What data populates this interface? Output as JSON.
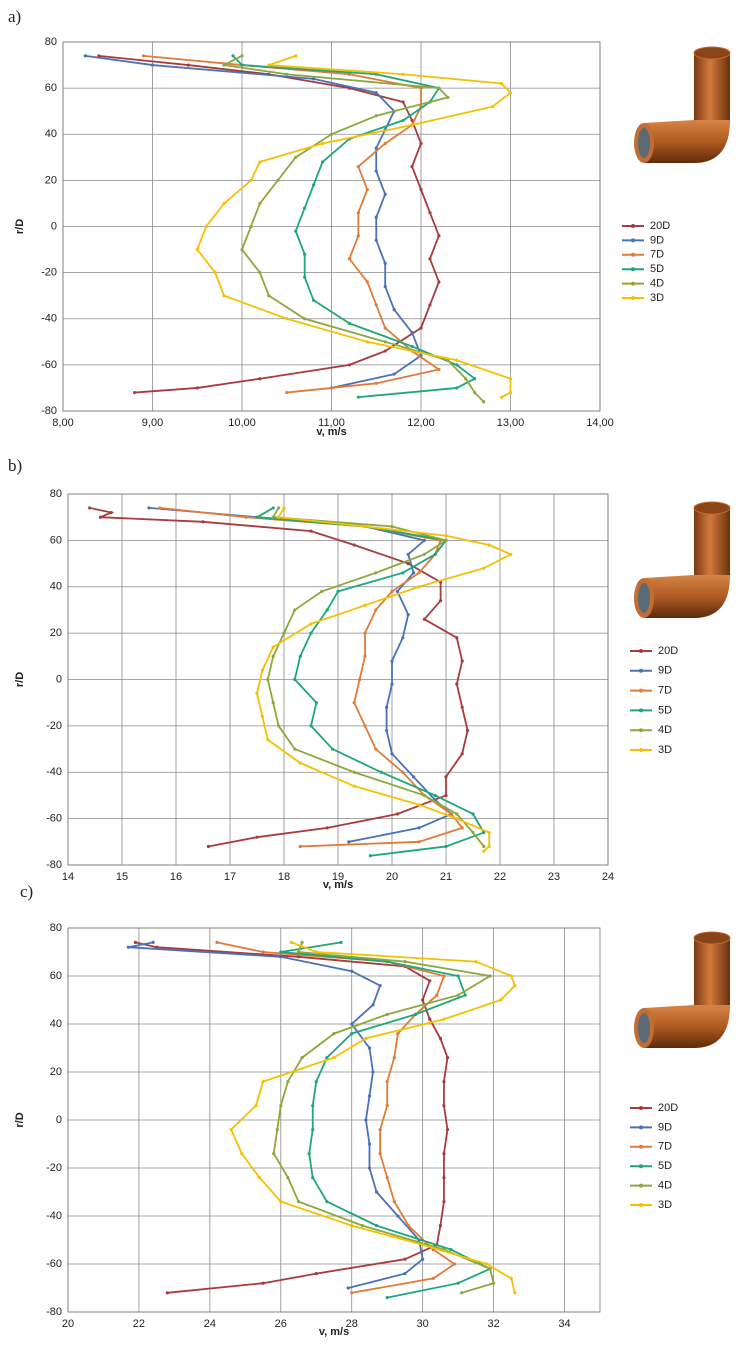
{
  "chart_data": [
    {
      "type": "line",
      "label": "a)",
      "xlabel": "v, m/s",
      "ylabel": "r/D",
      "xlim": [
        8,
        14
      ],
      "xticks": [
        {
          "value": 8,
          "label": "8,00"
        },
        {
          "value": 9,
          "label": "9,00"
        },
        {
          "value": 10,
          "label": "10,00"
        },
        {
          "value": 11,
          "label": "11,00"
        },
        {
          "value": 12,
          "label": "12,00"
        },
        {
          "value": 13,
          "label": "13,00"
        },
        {
          "value": 14,
          "label": "14,00"
        }
      ],
      "ylim": [
        -80,
        80
      ],
      "yticks": [
        -80,
        -60,
        -40,
        -20,
        0,
        20,
        40,
        60,
        80
      ],
      "grid": true,
      "series": [
        {
          "name": "20D",
          "color": "#a83b3b",
          "x": [
            8.4,
            9.4,
            10.3,
            11.2,
            11.8,
            11.9,
            12.0,
            11.9,
            12.0,
            12.1,
            12.2,
            12.1,
            12.2,
            12.1,
            12.0,
            11.6,
            11.2,
            10.2,
            9.5,
            8.8
          ],
          "values": [
            74,
            70,
            66,
            60,
            54,
            46,
            36,
            26,
            16,
            6,
            -4,
            -14,
            -24,
            -34,
            -44,
            -54,
            -60,
            -66,
            -70,
            -72
          ]
        },
        {
          "name": "9D",
          "color": "#4a72b8",
          "x": [
            8.25,
            9.0,
            10.8,
            11.5,
            11.7,
            11.6,
            11.5,
            11.5,
            11.6,
            11.5,
            11.5,
            11.6,
            11.6,
            11.7,
            11.9,
            12.0,
            11.7,
            11.0
          ],
          "values": [
            74,
            70,
            64,
            58,
            50,
            42,
            34,
            24,
            14,
            4,
            -6,
            -16,
            -26,
            -36,
            -46,
            -56,
            -64,
            -70
          ]
        },
        {
          "name": "7D",
          "color": "#e07b39",
          "x": [
            8.9,
            10.0,
            11.2,
            12.0,
            12.0,
            11.9,
            11.6,
            11.3,
            11.4,
            11.3,
            11.3,
            11.2,
            11.4,
            11.5,
            11.6,
            11.9,
            12.2,
            11.5,
            10.5
          ],
          "values": [
            74,
            70,
            66,
            60,
            52,
            44,
            36,
            26,
            16,
            6,
            -4,
            -14,
            -24,
            -34,
            -44,
            -54,
            -62,
            -68,
            -72
          ]
        },
        {
          "name": "5D",
          "color": "#1fa67a",
          "x": [
            9.9,
            10.0,
            11.5,
            12.2,
            12.1,
            11.8,
            11.2,
            10.9,
            10.8,
            10.7,
            10.6,
            10.7,
            10.7,
            10.8,
            11.2,
            11.9,
            12.4,
            12.6,
            12.4,
            11.3
          ],
          "values": [
            74,
            70,
            66,
            60,
            54,
            46,
            38,
            28,
            18,
            8,
            -2,
            -12,
            -22,
            -32,
            -42,
            -52,
            -60,
            -66,
            -70,
            -74
          ]
        },
        {
          "name": "4D",
          "color": "#8ca83c",
          "x": [
            10.0,
            9.8,
            10.5,
            12.2,
            12.3,
            11.5,
            11.0,
            10.6,
            10.4,
            10.2,
            10.1,
            10.0,
            10.2,
            10.3,
            10.7,
            11.6,
            12.3,
            12.5,
            12.6,
            12.7
          ],
          "values": [
            74,
            70,
            66,
            60,
            56,
            48,
            40,
            30,
            20,
            10,
            0,
            -10,
            -20,
            -30,
            -40,
            -50,
            -58,
            -66,
            -72,
            -76
          ]
        },
        {
          "name": "3D",
          "color": "#f5c000",
          "x": [
            10.6,
            10.3,
            11.8,
            12.9,
            13.0,
            12.8,
            11.9,
            10.9,
            10.2,
            10.1,
            9.8,
            9.6,
            9.5,
            9.7,
            9.8,
            10.5,
            11.4,
            12.4,
            13.0,
            13.0,
            12.9
          ],
          "values": [
            74,
            70,
            66,
            62,
            58,
            52,
            44,
            36,
            28,
            20,
            10,
            0,
            -10,
            -20,
            -30,
            -40,
            -50,
            -58,
            -66,
            -72,
            -74
          ]
        }
      ]
    },
    {
      "type": "line",
      "label": "b)",
      "xlabel": "v, m/s",
      "ylabel": "r/D",
      "xlim": [
        14,
        24
      ],
      "xticks": [
        14,
        15,
        16,
        17,
        18,
        19,
        20,
        21,
        22,
        23,
        24
      ],
      "ylim": [
        -80,
        80
      ],
      "yticks": [
        -80,
        -60,
        -40,
        -20,
        0,
        20,
        40,
        60,
        80
      ],
      "grid": true,
      "series": [
        {
          "name": "20D",
          "color": "#a83b3b",
          "x": [
            14.4,
            14.8,
            14.6,
            16.5,
            18.5,
            19.3,
            20.3,
            20.9,
            20.9,
            20.6,
            21.2,
            21.3,
            21.2,
            21.3,
            21.4,
            21.3,
            21.0,
            21.0,
            20.1,
            18.8,
            17.5,
            16.6
          ],
          "values": [
            74,
            72,
            70,
            68,
            64,
            58,
            50,
            42,
            34,
            26,
            18,
            8,
            -2,
            -12,
            -22,
            -32,
            -42,
            -50,
            -58,
            -64,
            -68,
            -72
          ]
        },
        {
          "name": "9D",
          "color": "#4a72b8",
          "x": [
            15.5,
            17.5,
            19.5,
            20.6,
            20.3,
            20.4,
            20.1,
            20.3,
            20.2,
            20.0,
            20.0,
            19.9,
            19.9,
            20.0,
            20.4,
            20.8,
            21.1,
            20.5,
            19.2
          ],
          "values": [
            74,
            70,
            66,
            60,
            54,
            46,
            38,
            28,
            18,
            8,
            -2,
            -12,
            -22,
            -32,
            -42,
            -52,
            -58,
            -64,
            -70
          ]
        },
        {
          "name": "7D",
          "color": "#e07b39",
          "x": [
            15.7,
            17.3,
            19.5,
            20.9,
            20.8,
            20.5,
            20.0,
            19.7,
            19.5,
            19.5,
            19.4,
            19.3,
            19.5,
            19.7,
            20.2,
            20.6,
            21.1,
            21.3,
            20.5,
            18.3
          ],
          "values": [
            74,
            70,
            66,
            60,
            54,
            46,
            38,
            30,
            20,
            10,
            0,
            -10,
            -20,
            -30,
            -40,
            -50,
            -58,
            -64,
            -70,
            -72
          ]
        },
        {
          "name": "5D",
          "color": "#1fa67a",
          "x": [
            17.8,
            17.5,
            19.5,
            21.0,
            20.8,
            20.2,
            19.0,
            18.8,
            18.5,
            18.3,
            18.2,
            18.6,
            18.5,
            18.9,
            19.8,
            20.8,
            21.5,
            21.7,
            21.0,
            19.6
          ],
          "values": [
            74,
            70,
            66,
            60,
            54,
            46,
            38,
            30,
            20,
            10,
            0,
            -10,
            -20,
            -30,
            -40,
            -50,
            -58,
            -66,
            -72,
            -76
          ]
        },
        {
          "name": "4D",
          "color": "#8ca83c",
          "x": [
            17.9,
            17.8,
            20.0,
            21.0,
            20.6,
            19.7,
            18.7,
            18.2,
            18.0,
            17.8,
            17.7,
            17.8,
            17.9,
            18.2,
            19.3,
            20.6,
            21.2,
            21.5,
            21.7
          ],
          "values": [
            74,
            70,
            66,
            60,
            54,
            46,
            38,
            30,
            20,
            10,
            0,
            -10,
            -20,
            -30,
            -40,
            -50,
            -58,
            -66,
            -72
          ]
        },
        {
          "name": "3D",
          "color": "#f5c000",
          "x": [
            18.0,
            17.9,
            19.5,
            21.0,
            21.8,
            22.2,
            21.7,
            20.5,
            19.5,
            18.5,
            17.8,
            17.6,
            17.5,
            17.6,
            17.7,
            18.3,
            19.3,
            20.5,
            21.2,
            21.8,
            21.8,
            21.7
          ],
          "values": [
            74,
            70,
            66,
            62,
            58,
            54,
            48,
            40,
            32,
            24,
            14,
            4,
            -6,
            -16,
            -26,
            -36,
            -46,
            -54,
            -60,
            -66,
            -72,
            -74
          ]
        }
      ]
    },
    {
      "type": "line",
      "label": "c)",
      "xlabel": "v, m/s",
      "ylabel": "r/D",
      "xlim": [
        20,
        35
      ],
      "xticks": [
        20,
        22,
        24,
        26,
        28,
        30,
        32,
        34
      ],
      "ylim": [
        -80,
        80
      ],
      "yticks": [
        -80,
        -60,
        -40,
        -20,
        0,
        20,
        40,
        60,
        80
      ],
      "grid": true,
      "series": [
        {
          "name": "20D",
          "color": "#a83b3b",
          "x": [
            21.9,
            22.5,
            26.5,
            29.5,
            30.2,
            30.0,
            30.2,
            30.5,
            30.7,
            30.6,
            30.6,
            30.7,
            30.6,
            30.6,
            30.6,
            30.5,
            30.4,
            29.5,
            27.0,
            25.5,
            22.8
          ],
          "values": [
            74,
            72,
            68,
            64,
            58,
            50,
            42,
            34,
            26,
            16,
            6,
            -4,
            -14,
            -24,
            -34,
            -44,
            -52,
            -58,
            -64,
            -68,
            -72
          ]
        },
        {
          "name": "9D",
          "color": "#4a72b8",
          "x": [
            22.4,
            21.7,
            26.0,
            28.0,
            28.8,
            28.6,
            28.0,
            28.5,
            28.6,
            28.5,
            28.4,
            28.5,
            28.5,
            28.7,
            29.3,
            29.9,
            30.0,
            29.5,
            27.9
          ],
          "values": [
            74,
            72,
            68,
            62,
            56,
            48,
            40,
            30,
            20,
            10,
            0,
            -10,
            -20,
            -30,
            -40,
            -50,
            -58,
            -64,
            -70
          ]
        },
        {
          "name": "7D",
          "color": "#e07b39",
          "x": [
            24.2,
            25.5,
            29.0,
            30.6,
            30.4,
            29.8,
            29.3,
            29.2,
            29.0,
            29.0,
            28.8,
            28.8,
            29.0,
            29.2,
            29.6,
            30.3,
            30.9,
            30.3,
            28.0
          ],
          "values": [
            74,
            70,
            66,
            60,
            52,
            44,
            36,
            26,
            16,
            6,
            -4,
            -14,
            -24,
            -34,
            -44,
            -54,
            -60,
            -66,
            -72
          ]
        },
        {
          "name": "5D",
          "color": "#1fa67a",
          "x": [
            27.7,
            26.0,
            29.0,
            31.0,
            31.2,
            29.8,
            28.0,
            27.3,
            27.0,
            26.9,
            26.9,
            26.8,
            26.9,
            27.3,
            28.7,
            30.8,
            31.9,
            31.0,
            29.0
          ],
          "values": [
            74,
            70,
            66,
            60,
            52,
            44,
            36,
            26,
            16,
            6,
            -4,
            -14,
            -24,
            -34,
            -44,
            -54,
            -62,
            -68,
            -74
          ]
        },
        {
          "name": "4D",
          "color": "#8ca83c",
          "x": [
            26.6,
            26.5,
            29.5,
            31.9,
            31.0,
            29.0,
            27.5,
            26.6,
            26.2,
            26.0,
            25.9,
            25.8,
            26.2,
            26.5,
            28.3,
            30.6,
            31.9,
            32.0,
            31.1
          ],
          "values": [
            74,
            70,
            66,
            60,
            52,
            44,
            36,
            26,
            16,
            6,
            -4,
            -14,
            -24,
            -34,
            -44,
            -54,
            -62,
            -68,
            -72
          ]
        },
        {
          "name": "3D",
          "color": "#f5c000",
          "x": [
            26.3,
            27.0,
            31.5,
            32.5,
            32.6,
            32.2,
            30.6,
            28.4,
            27.5,
            25.5,
            25.3,
            24.6,
            24.9,
            25.4,
            26.0,
            28.0,
            30.0,
            31.8,
            32.5,
            32.6
          ],
          "values": [
            74,
            70,
            66,
            60,
            56,
            50,
            42,
            34,
            26,
            16,
            6,
            -4,
            -14,
            -24,
            -34,
            -44,
            -52,
            -60,
            -66,
            -72
          ]
        }
      ]
    }
  ]
}
